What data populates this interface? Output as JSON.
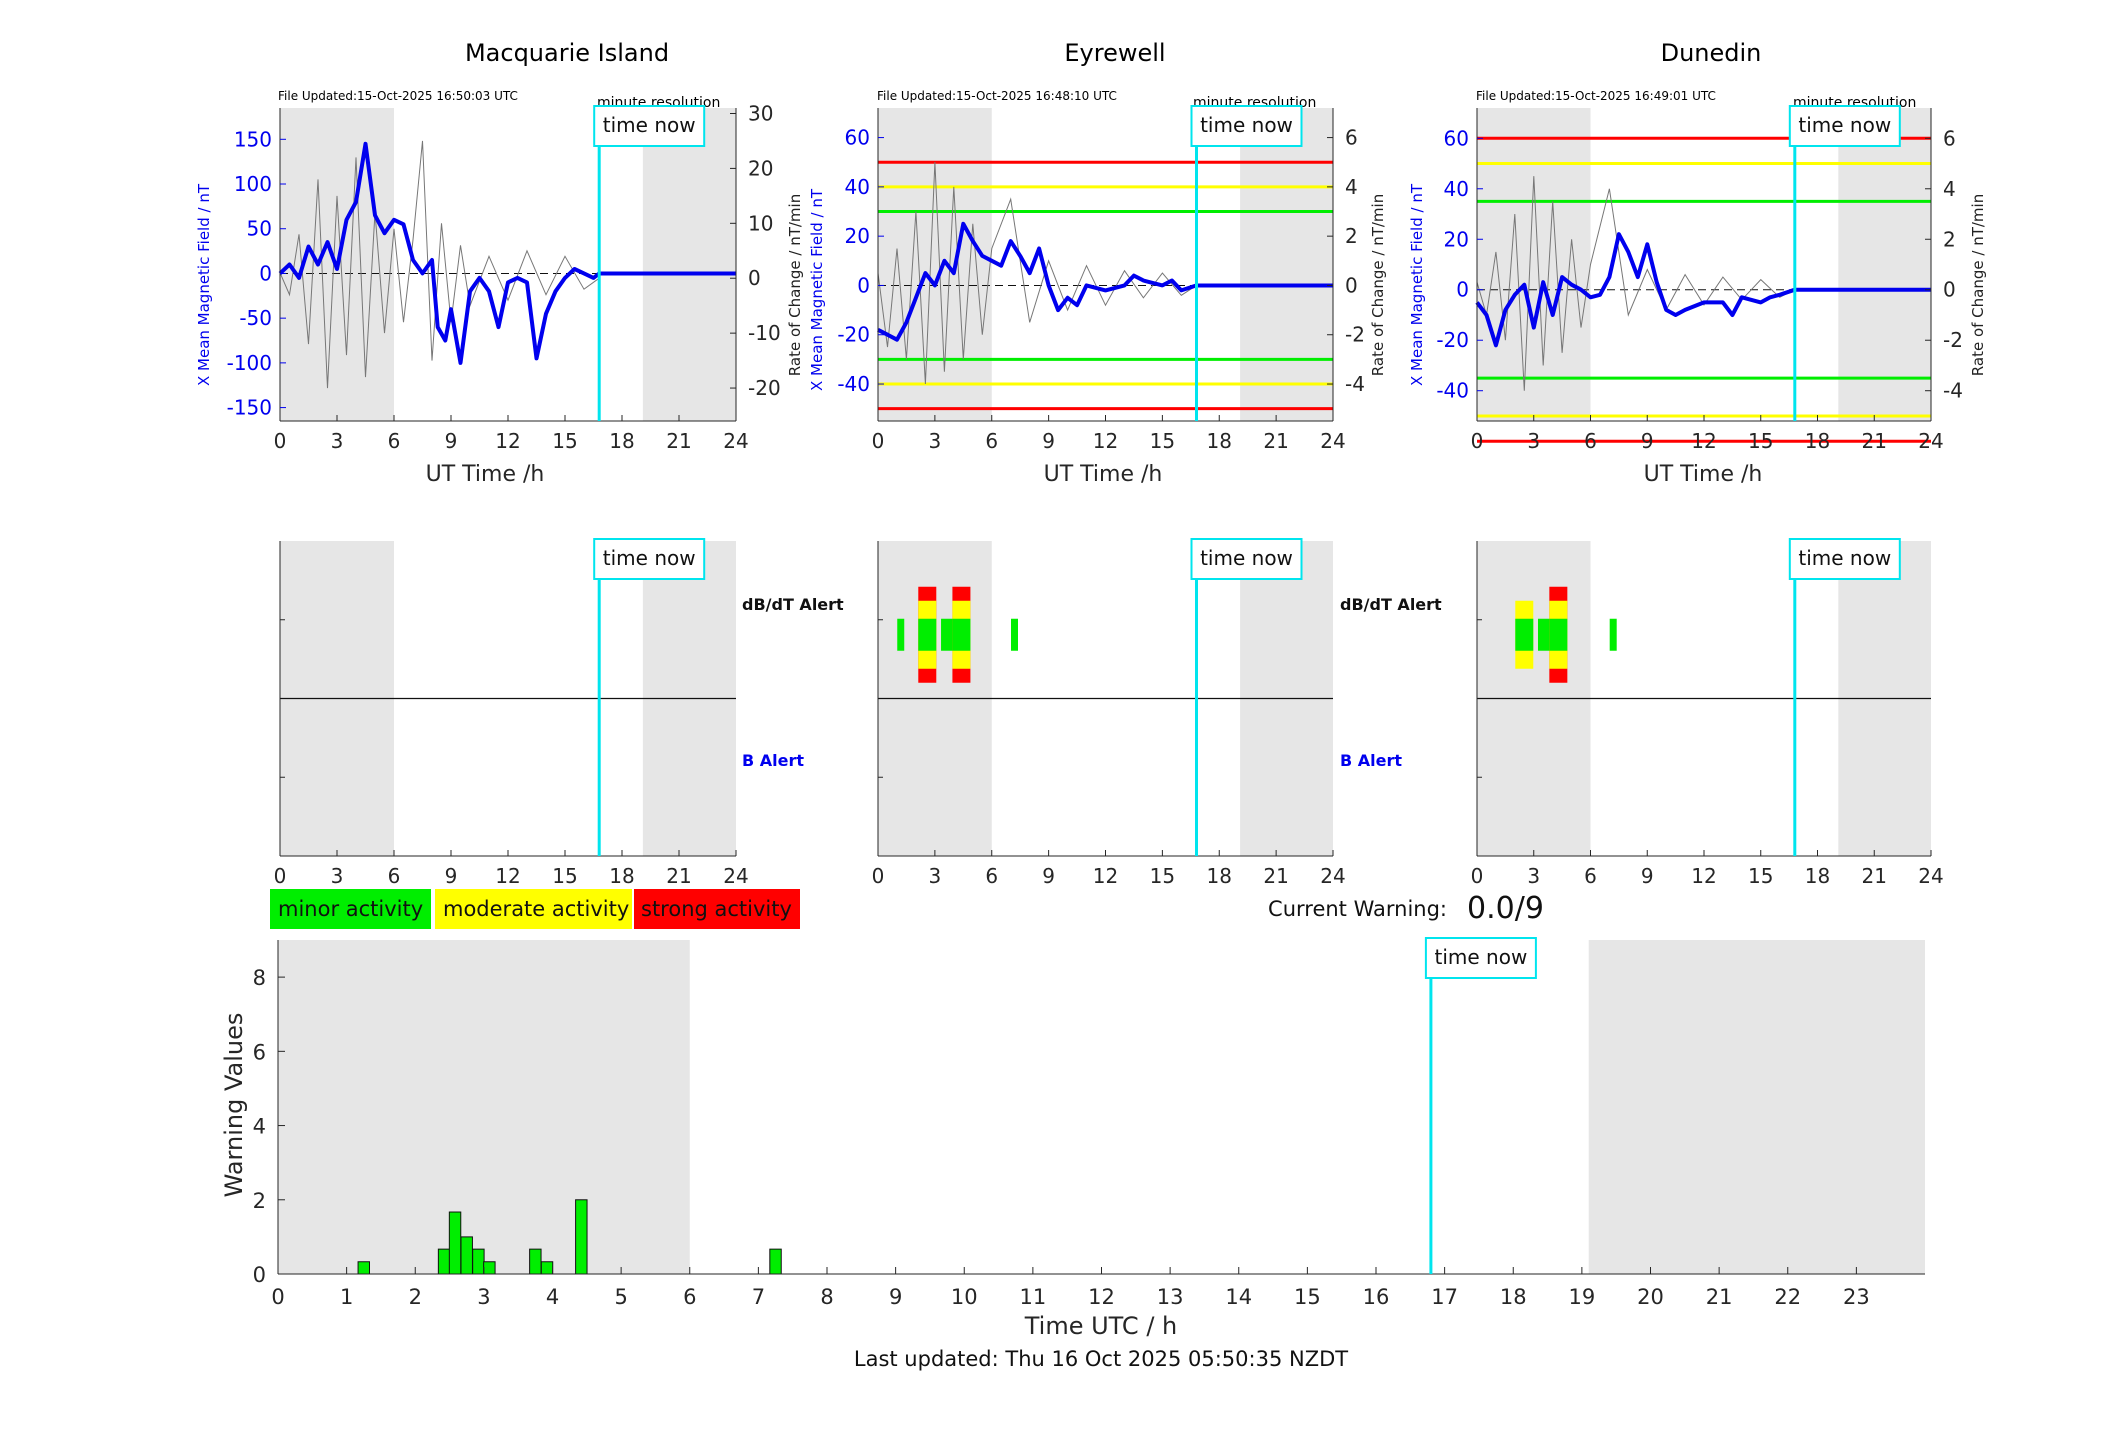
{
  "stations": [
    {
      "title": "Macquarie Island",
      "file_updated": "File Updated:15-Oct-2025 16:50:03 UTC",
      "resolution": "minute resolution",
      "ylabel_left": "X Mean Magnetic Field / nT",
      "ylabel_right": "Rate of Change / nT/min",
      "yticks_left": [
        "150",
        "100",
        "50",
        "0",
        "-50",
        "-100",
        "-150"
      ],
      "yticks_right": [
        "30",
        "20",
        "10",
        "0",
        "-10",
        "-20"
      ]
    },
    {
      "title": "Eyrewell",
      "file_updated": "File Updated:15-Oct-2025 16:48:10 UTC",
      "resolution": "minute resolution",
      "ylabel_left": "X Mean Magnetic Field / nT",
      "ylabel_right": "Rate of Change / nT/min",
      "yticks_left": [
        "60",
        "40",
        "20",
        "0",
        "-20",
        "-40"
      ],
      "yticks_right": [
        "6",
        "4",
        "2",
        "0",
        "-2",
        "-4"
      ]
    },
    {
      "title": "Dunedin",
      "file_updated": "File Updated:15-Oct-2025 16:49:01 UTC",
      "resolution": "minute resolution",
      "ylabel_left": "X Mean Magnetic Field / nT",
      "ylabel_right": "Rate of Change / nT/min",
      "yticks_left": [
        "60",
        "40",
        "20",
        "0",
        "-20",
        "-40"
      ],
      "yticks_right": [
        "6",
        "4",
        "2",
        "0",
        "-2",
        "-4"
      ]
    }
  ],
  "hour_ticks": [
    "0",
    "3",
    "6",
    "9",
    "12",
    "15",
    "18",
    "21",
    "24"
  ],
  "xlabel_ut": "UT Time /h",
  "time_now_label": "time now",
  "alert_labels": {
    "dbdt": "dB/dT Alert",
    "b": "B Alert"
  },
  "legend": {
    "minor": "minor activity",
    "moderate": "moderate activity",
    "strong": "strong activity"
  },
  "current_warning": {
    "label": "Current Warning:",
    "value": "0.0/9"
  },
  "warning_chart": {
    "ylabel": "Warning Values",
    "xlabel": "Time UTC / h",
    "xticks": [
      "0",
      "1",
      "2",
      "3",
      "4",
      "5",
      "6",
      "7",
      "8",
      "9",
      "10",
      "11",
      "12",
      "13",
      "14",
      "15",
      "16",
      "17",
      "18",
      "19",
      "20",
      "21",
      "22",
      "23"
    ],
    "yticks": [
      "8",
      "6",
      "4",
      "2",
      "0"
    ]
  },
  "last_updated": "Last updated: Thu 16 Oct 2025 05:50:35 NZDT",
  "colors": {
    "minor": "#00ee00",
    "moderate": "#ffff00",
    "strong": "#ff0000",
    "time_now": "#00e5ee",
    "field_line": "#0000ee",
    "night_shade": "#e6e6e6"
  },
  "chart_data": [
    {
      "type": "line",
      "title": "Macquarie Island",
      "xlabel": "UT Time /h",
      "ylabel": "X Mean Magnetic Field / nT",
      "xlim": [
        0,
        24
      ],
      "ylim": [
        -165,
        185
      ],
      "y2lim": [
        -26,
        31
      ],
      "time_now": 16.8,
      "night_shading": [
        [
          0,
          6
        ],
        [
          19.1,
          24
        ]
      ],
      "thresholds": [],
      "series": [
        {
          "name": "X Mean Magnetic Field",
          "x": [
            0,
            0.5,
            1,
            1.5,
            2,
            2.5,
            3,
            3.5,
            4,
            4.5,
            5,
            5.5,
            6,
            6.5,
            7,
            7.5,
            8,
            8.3,
            8.7,
            9,
            9.5,
            10,
            10.5,
            11,
            11.5,
            12,
            12.5,
            13,
            13.5,
            14,
            14.5,
            15,
            15.5,
            16,
            16.5,
            16.8
          ],
          "y": [
            0,
            10,
            -5,
            30,
            10,
            35,
            5,
            60,
            80,
            145,
            65,
            45,
            60,
            55,
            15,
            0,
            15,
            -60,
            -75,
            -40,
            -100,
            -20,
            -5,
            -20,
            -60,
            -10,
            -5,
            -10,
            -95,
            -45,
            -20,
            -5,
            5,
            0,
            -5,
            0
          ]
        },
        {
          "name": "Rate of Change",
          "x": [
            0,
            0.5,
            1,
            1.5,
            2,
            2.5,
            3,
            3.5,
            4,
            4.5,
            5,
            5.5,
            6,
            6.5,
            7,
            7.5,
            8,
            8.5,
            9,
            9.5,
            10,
            11,
            12,
            13,
            14,
            15,
            16,
            16.8
          ],
          "y": [
            1,
            -3,
            8,
            -12,
            18,
            -20,
            15,
            -14,
            22,
            -18,
            12,
            -10,
            9,
            -8,
            7,
            25,
            -15,
            10,
            -8,
            6,
            -5,
            4,
            -4,
            5,
            -3,
            4,
            -2,
            0
          ]
        }
      ]
    },
    {
      "type": "line",
      "title": "Eyrewell",
      "xlabel": "UT Time /h",
      "ylabel": "X Mean Magnetic Field / nT",
      "xlim": [
        0,
        24
      ],
      "ylim": [
        -55,
        72
      ],
      "y2lim": [
        -5.5,
        7.2
      ],
      "time_now": 16.8,
      "night_shading": [
        [
          0,
          6
        ],
        [
          19.1,
          24
        ]
      ],
      "thresholds": [
        {
          "level": "strong",
          "values": [
            50,
            -50
          ]
        },
        {
          "level": "moderate",
          "values": [
            40,
            -40
          ]
        },
        {
          "level": "minor",
          "values": [
            30,
            -30
          ]
        }
      ],
      "series": [
        {
          "name": "X Mean Magnetic Field",
          "x": [
            0,
            0.5,
            1,
            1.5,
            2,
            2.5,
            3,
            3.5,
            4,
            4.5,
            5,
            5.5,
            6,
            6.5,
            7,
            7.5,
            8,
            8.5,
            9,
            9.5,
            10,
            10.5,
            11,
            12,
            13,
            13.5,
            14,
            15,
            15.5,
            16,
            16.8
          ],
          "y": [
            -18,
            -20,
            -22,
            -15,
            -5,
            5,
            0,
            10,
            5,
            25,
            18,
            12,
            10,
            8,
            18,
            12,
            5,
            15,
            0,
            -10,
            -5,
            -8,
            0,
            -2,
            0,
            4,
            2,
            0,
            2,
            -2,
            0
          ]
        },
        {
          "name": "Rate of Change",
          "x": [
            0,
            0.5,
            1,
            1.5,
            2,
            2.5,
            3,
            3.5,
            4,
            4.5,
            5,
            5.5,
            6,
            7,
            8,
            9,
            10,
            11,
            12,
            13,
            14,
            15,
            16,
            16.8
          ],
          "y": [
            0.5,
            -2.5,
            1.5,
            -3,
            3,
            -4,
            5,
            -3.5,
            4,
            -3,
            2.5,
            -2,
            1.5,
            3.5,
            -1.5,
            1,
            -1,
            0.8,
            -0.8,
            0.6,
            -0.5,
            0.5,
            -0.4,
            0
          ]
        }
      ],
      "dbdt_alerts": [
        {
          "hour": 1.2,
          "level": "minor"
        },
        {
          "hour": 2.6,
          "level": "strong"
        },
        {
          "hour": 3.8,
          "level": "minor"
        },
        {
          "hour": 4.4,
          "level": "strong"
        },
        {
          "hour": 7.2,
          "level": "minor"
        }
      ],
      "b_alerts": []
    },
    {
      "type": "line",
      "title": "Dunedin",
      "xlabel": "UT Time /h",
      "ylabel": "X Mean Magnetic Field / nT",
      "xlim": [
        0,
        24
      ],
      "ylim": [
        -52,
        72
      ],
      "y2lim": [
        -5.2,
        7.2
      ],
      "time_now": 16.8,
      "night_shading": [
        [
          0,
          6
        ],
        [
          19.1,
          24
        ]
      ],
      "thresholds": [
        {
          "level": "strong",
          "values": [
            60,
            -60
          ]
        },
        {
          "level": "moderate",
          "values": [
            50,
            -50
          ]
        },
        {
          "level": "minor",
          "values": [
            35,
            -35
          ]
        }
      ],
      "series": [
        {
          "name": "X Mean Magnetic Field",
          "x": [
            0,
            0.5,
            1,
            1.5,
            2,
            2.5,
            3,
            3.5,
            4,
            4.5,
            5,
            5.5,
            6,
            6.5,
            7,
            7.5,
            8,
            8.5,
            9,
            9.5,
            10,
            10.5,
            11,
            12,
            13,
            13.5,
            14,
            15,
            15.5,
            16,
            16.8
          ],
          "y": [
            -5,
            -10,
            -22,
            -8,
            -2,
            2,
            -15,
            3,
            -10,
            5,
            2,
            0,
            -3,
            -2,
            5,
            22,
            15,
            5,
            18,
            3,
            -8,
            -10,
            -8,
            -5,
            -5,
            -10,
            -3,
            -5,
            -3,
            -2,
            0
          ]
        },
        {
          "name": "Rate of Change",
          "x": [
            0,
            0.5,
            1,
            1.5,
            2,
            2.5,
            3,
            3.5,
            4,
            4.5,
            5,
            5.5,
            6,
            7,
            8,
            9,
            10,
            11,
            12,
            13,
            14,
            15,
            16,
            16.8
          ],
          "y": [
            0.3,
            -1,
            1.5,
            -2,
            3,
            -4,
            4.5,
            -3,
            3.5,
            -2.5,
            2,
            -1.5,
            1,
            4,
            -1,
            0.8,
            -0.8,
            0.6,
            -0.6,
            0.5,
            -0.4,
            0.4,
            -0.3,
            0
          ]
        }
      ],
      "dbdt_alerts": [
        {
          "hour": 2.5,
          "level": "moderate"
        },
        {
          "hour": 3.7,
          "level": "minor"
        },
        {
          "hour": 4.3,
          "level": "strong"
        },
        {
          "hour": 7.2,
          "level": "minor"
        }
      ],
      "b_alerts": []
    },
    {
      "type": "bar",
      "title": "",
      "xlabel": "Time UTC / h",
      "ylabel": "Warning Values",
      "xlim": [
        0,
        24
      ],
      "ylim": [
        0,
        9
      ],
      "time_now": 16.8,
      "night_shading": [
        [
          0,
          6
        ],
        [
          19.1,
          24
        ]
      ],
      "bar_color": "minor",
      "x": [
        1.25,
        2.42,
        2.58,
        2.75,
        2.92,
        3.08,
        3.75,
        3.92,
        4.42,
        7.25
      ],
      "y": [
        0.33,
        0.67,
        1.67,
        1.0,
        0.67,
        0.33,
        0.67,
        0.33,
        2.0,
        0.67
      ]
    }
  ]
}
